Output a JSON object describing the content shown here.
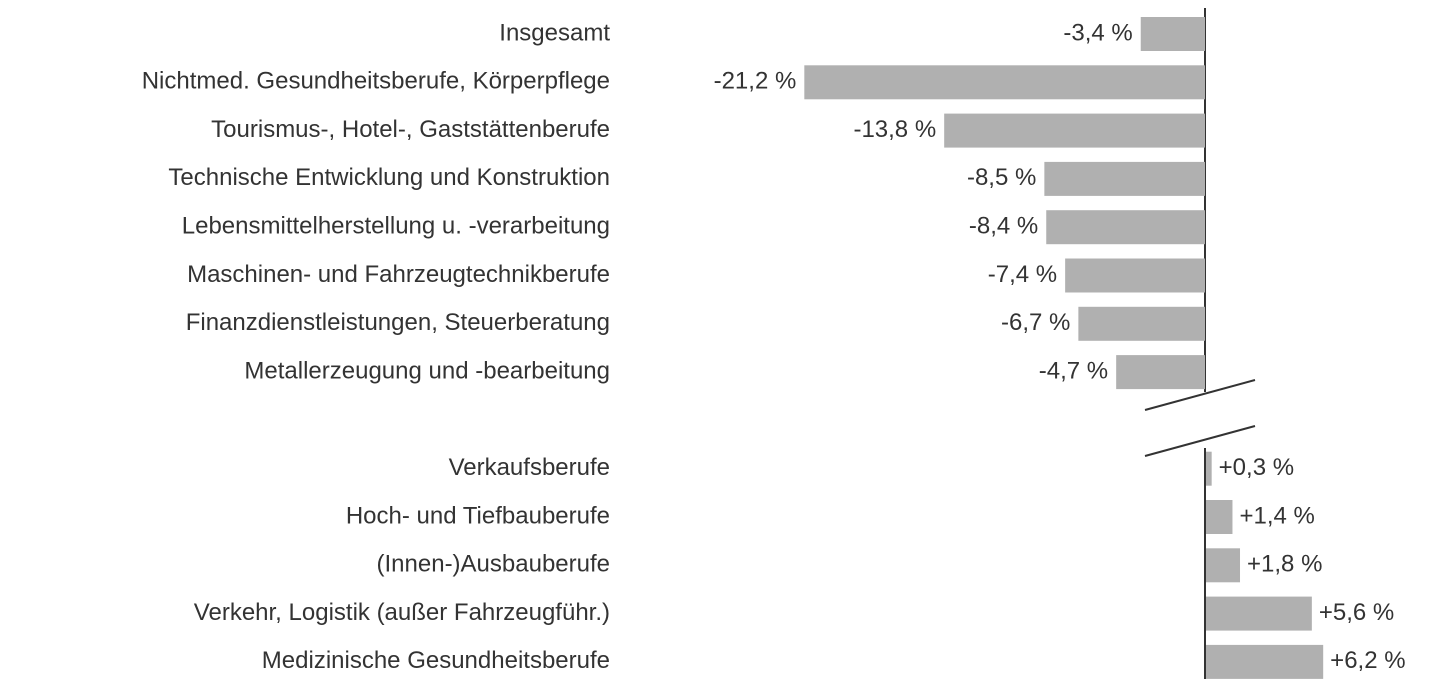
{
  "chart_data": {
    "type": "bar",
    "orientation": "horizontal",
    "categories": [
      "Insgesamt",
      "Nichtmed. Gesundheitsberufe, Körperpflege",
      "Tourismus-, Hotel-, Gaststättenberufe",
      "Technische Entwicklung und Konstruktion",
      "Lebensmittelherstellung u. -verarbeitung",
      "Maschinen- und Fahrzeugtechnikberufe",
      "Finanzdienstleistungen, Steuerberatung",
      "Metallerzeugung und -bearbeitung",
      "Verkaufsberufe",
      "Hoch- und Tiefbauberufe",
      "(Innen-)Ausbauberufe",
      "Verkehr, Logistik (außer Fahrzeugführ.)",
      "Medizinische Gesundheitsberufe"
    ],
    "values": [
      -3.4,
      -21.2,
      -13.8,
      -8.5,
      -8.4,
      -7.4,
      -6.7,
      -4.7,
      0.3,
      1.4,
      1.8,
      5.6,
      6.2
    ],
    "value_labels": [
      "-3,4 %",
      "-21,2 %",
      "-13,8 %",
      "-8,5 %",
      "-8,4 %",
      "-7,4 %",
      "-6,7 %",
      "-4,7 %",
      "+0,3 %",
      "+1,4 %",
      "+1,8 %",
      "+5,6 %",
      "+6,2 %"
    ],
    "color": "#b0b0b0"
  }
}
